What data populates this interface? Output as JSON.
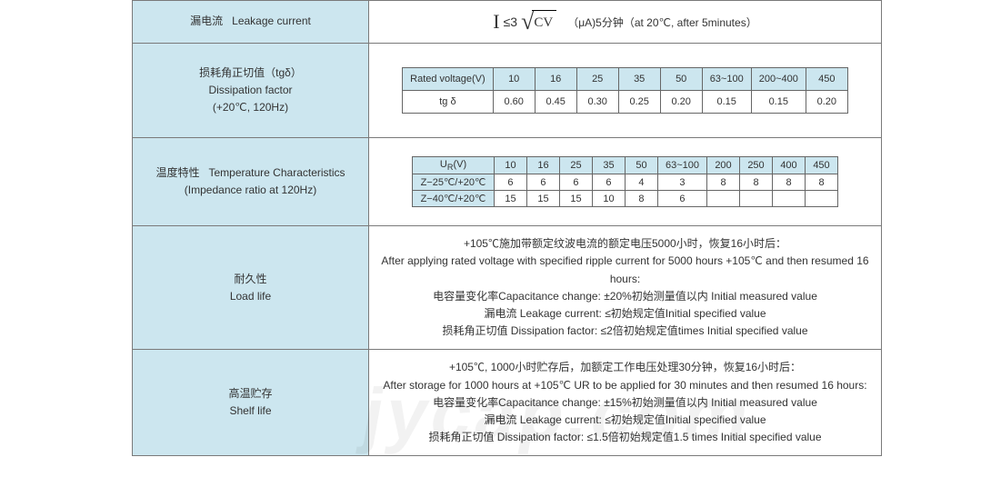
{
  "watermark": "jycap.com",
  "rows": {
    "leakage": {
      "label_cn": "漏电流",
      "label_en": "Leakage current",
      "formula": {
        "lhs": "I",
        "op": "≤3",
        "inside": "CV"
      },
      "suffix": "（μA)5分钟（at 20℃, after 5minutes）"
    },
    "dissipation": {
      "label_cn": "损耗角正切值（tgδ）",
      "label_en1": "Dissipation factor",
      "label_en2": "(+20℃, 120Hz)",
      "table": {
        "header_label": "Rated voltage(V)",
        "row_label": "tg δ",
        "cols": [
          "10",
          "16",
          "25",
          "35",
          "50",
          "63~100",
          "200~400",
          "450"
        ],
        "vals": [
          "0.60",
          "0.45",
          "0.30",
          "0.25",
          "0.20",
          "0.15",
          "0.15",
          "0.20"
        ]
      }
    },
    "temperature": {
      "label_cn": "温度特性",
      "label_en": "Temperature Characteristics",
      "label_sub": "(Impedance ratio at 120Hz)",
      "table": {
        "header_label": "UR(V)",
        "cols": [
          "10",
          "16",
          "25",
          "35",
          "50",
          "63~100",
          "200",
          "250",
          "400",
          "450"
        ],
        "rowlabels": [
          "Z−25℃/+20℃",
          "Z−40℃/+20℃"
        ],
        "row1": [
          "6",
          "6",
          "6",
          "6",
          "4",
          "3",
          "8",
          "8",
          "8",
          "8"
        ],
        "row2": [
          "15",
          "15",
          "15",
          "10",
          "8",
          "6",
          "",
          "",
          "",
          ""
        ]
      }
    },
    "loadlife": {
      "label_cn": "耐久性",
      "label_en": "Load life",
      "lines": [
        "+105℃施加带额定纹波电流的额定电压5000小时，恢复16小时后：",
        "After applying rated voltage with specified ripple current for 5000 hours +105℃ and then resumed 16 hours:",
        "电容量变化率Capacitance change: ±20%初始测量值以内 Initial measured value",
        "漏电流 Leakage current: ≤初始规定值Initial specified value",
        "损耗角正切值 Dissipation factor: ≤2倍初始规定值times Initial specified value"
      ]
    },
    "shelflife": {
      "label_cn": "高温贮存",
      "label_en": "Shelf life",
      "lines": [
        "+105℃, 1000小时贮存后，加额定工作电压处理30分钟，恢复16小时后：",
        "After storage for 1000 hours at +105℃ UR to be applied for 30 minutes and then resumed 16 hours:",
        "电容量变化率Capacitance change: ±15%初始测量值以内 Initial measured value",
        "漏电流 Leakage current: ≤初始规定值Initial specified value",
        "损耗角正切值 Dissipation factor: ≤1.5倍初始规定值1.5 times Initial specified value"
      ]
    }
  },
  "colors": {
    "header_bg": "#cce6ef",
    "border": "#7a7a7a",
    "text": "#333333",
    "bg": "#ffffff"
  }
}
